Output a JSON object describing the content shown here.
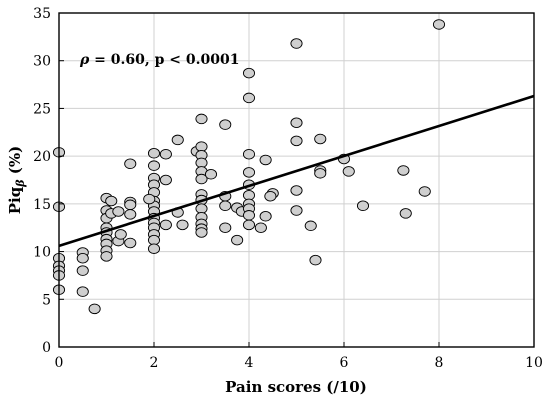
{
  "chart_data": {
    "type": "scatter",
    "title": "",
    "xlabel": "Pain scores (/10)",
    "ylabel_main": "Piq",
    "ylabel_sub": "β",
    "ylabel_unit": " (%)",
    "xlim": [
      0,
      10
    ],
    "ylim": [
      0,
      35
    ],
    "xticks": [
      0,
      2,
      4,
      6,
      8,
      10
    ],
    "yticks": [
      0,
      5,
      10,
      15,
      20,
      25,
      30,
      35
    ],
    "grid": true,
    "annotation": {
      "rho": "ρ",
      "text": " = 0.60, p < 0.0001"
    },
    "fit_line": {
      "x": [
        0,
        10
      ],
      "y": [
        10.6,
        26.3
      ]
    },
    "points": [
      {
        "x": 0,
        "y": 20.4
      },
      {
        "x": 0,
        "y": 14.7
      },
      {
        "x": 0,
        "y": 9.3
      },
      {
        "x": 0,
        "y": 8.5
      },
      {
        "x": 0,
        "y": 8.0
      },
      {
        "x": 0,
        "y": 7.5
      },
      {
        "x": 0,
        "y": 6.0
      },
      {
        "x": 0.5,
        "y": 9.9
      },
      {
        "x": 0.5,
        "y": 9.3
      },
      {
        "x": 0.5,
        "y": 8.0
      },
      {
        "x": 0.5,
        "y": 5.8
      },
      {
        "x": 0.75,
        "y": 4.0
      },
      {
        "x": 1,
        "y": 15.6
      },
      {
        "x": 1,
        "y": 14.3
      },
      {
        "x": 1,
        "y": 13.5
      },
      {
        "x": 1,
        "y": 12.5
      },
      {
        "x": 1,
        "y": 12.0
      },
      {
        "x": 1,
        "y": 11.3
      },
      {
        "x": 1,
        "y": 10.8
      },
      {
        "x": 1,
        "y": 10.1
      },
      {
        "x": 1,
        "y": 9.5
      },
      {
        "x": 1.1,
        "y": 15.3
      },
      {
        "x": 1.1,
        "y": 14.0
      },
      {
        "x": 1.25,
        "y": 14.2
      },
      {
        "x": 1.25,
        "y": 11.1
      },
      {
        "x": 1.3,
        "y": 11.8
      },
      {
        "x": 1.5,
        "y": 19.2
      },
      {
        "x": 1.5,
        "y": 15.2
      },
      {
        "x": 1.5,
        "y": 14.9
      },
      {
        "x": 1.5,
        "y": 13.9
      },
      {
        "x": 1.5,
        "y": 10.9
      },
      {
        "x": 2,
        "y": 20.3
      },
      {
        "x": 2,
        "y": 19.0
      },
      {
        "x": 2,
        "y": 17.7
      },
      {
        "x": 2,
        "y": 17.0
      },
      {
        "x": 2,
        "y": 16.2
      },
      {
        "x": 2,
        "y": 15.3
      },
      {
        "x": 2,
        "y": 14.8
      },
      {
        "x": 2,
        "y": 14.2
      },
      {
        "x": 2,
        "y": 13.5
      },
      {
        "x": 2,
        "y": 13.0
      },
      {
        "x": 2,
        "y": 12.5
      },
      {
        "x": 2,
        "y": 11.8
      },
      {
        "x": 2,
        "y": 11.2
      },
      {
        "x": 2,
        "y": 10.3
      },
      {
        "x": 1.9,
        "y": 15.5
      },
      {
        "x": 2.25,
        "y": 20.2
      },
      {
        "x": 2.25,
        "y": 17.5
      },
      {
        "x": 2.25,
        "y": 12.8
      },
      {
        "x": 2.5,
        "y": 21.7
      },
      {
        "x": 2.5,
        "y": 14.1
      },
      {
        "x": 2.6,
        "y": 12.8
      },
      {
        "x": 2.9,
        "y": 20.5
      },
      {
        "x": 3,
        "y": 23.9
      },
      {
        "x": 3,
        "y": 21.0
      },
      {
        "x": 3,
        "y": 20.1
      },
      {
        "x": 3,
        "y": 19.3
      },
      {
        "x": 3,
        "y": 18.4
      },
      {
        "x": 3,
        "y": 17.6
      },
      {
        "x": 3,
        "y": 16.0
      },
      {
        "x": 3,
        "y": 15.4
      },
      {
        "x": 3,
        "y": 14.5
      },
      {
        "x": 3,
        "y": 13.6
      },
      {
        "x": 3,
        "y": 12.9
      },
      {
        "x": 3,
        "y": 12.4
      },
      {
        "x": 3,
        "y": 12.0
      },
      {
        "x": 3.2,
        "y": 18.1
      },
      {
        "x": 3.5,
        "y": 23.3
      },
      {
        "x": 3.5,
        "y": 15.8
      },
      {
        "x": 3.5,
        "y": 14.8
      },
      {
        "x": 3.5,
        "y": 12.5
      },
      {
        "x": 3.75,
        "y": 11.2
      },
      {
        "x": 3.75,
        "y": 14.6
      },
      {
        "x": 3.85,
        "y": 14.2
      },
      {
        "x": 4,
        "y": 28.7
      },
      {
        "x": 4,
        "y": 26.1
      },
      {
        "x": 4,
        "y": 20.2
      },
      {
        "x": 4,
        "y": 18.3
      },
      {
        "x": 4,
        "y": 17.0
      },
      {
        "x": 4,
        "y": 15.9
      },
      {
        "x": 4,
        "y": 15.0
      },
      {
        "x": 4,
        "y": 14.5
      },
      {
        "x": 4,
        "y": 13.8
      },
      {
        "x": 4,
        "y": 12.8
      },
      {
        "x": 4.25,
        "y": 12.5
      },
      {
        "x": 4.35,
        "y": 19.6
      },
      {
        "x": 4.35,
        "y": 13.7
      },
      {
        "x": 4.5,
        "y": 16.1
      },
      {
        "x": 4.45,
        "y": 15.8
      },
      {
        "x": 5,
        "y": 31.8
      },
      {
        "x": 5,
        "y": 23.5
      },
      {
        "x": 5,
        "y": 21.6
      },
      {
        "x": 5,
        "y": 16.4
      },
      {
        "x": 5,
        "y": 14.3
      },
      {
        "x": 5.3,
        "y": 12.7
      },
      {
        "x": 5.4,
        "y": 9.1
      },
      {
        "x": 5.5,
        "y": 21.8
      },
      {
        "x": 5.5,
        "y": 18.5
      },
      {
        "x": 5.5,
        "y": 18.2
      },
      {
        "x": 6,
        "y": 19.7
      },
      {
        "x": 6.1,
        "y": 18.4
      },
      {
        "x": 6.4,
        "y": 14.8
      },
      {
        "x": 7.25,
        "y": 18.5
      },
      {
        "x": 7.3,
        "y": 14.0
      },
      {
        "x": 7.7,
        "y": 16.3
      },
      {
        "x": 8,
        "y": 33.8
      }
    ]
  }
}
